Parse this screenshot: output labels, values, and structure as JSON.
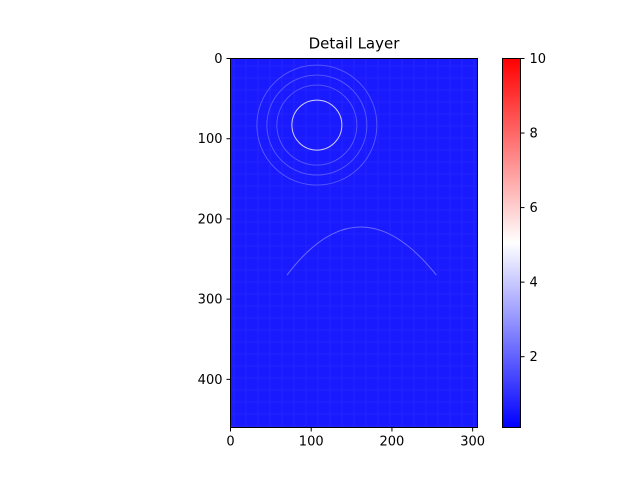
{
  "chart_data": {
    "type": "heatmap",
    "title": "Detail Layer",
    "xlabel": "",
    "ylabel": "",
    "image_size": {
      "width": 306,
      "height": 460
    },
    "x_ticks": [
      0,
      100,
      200,
      300
    ],
    "y_ticks": [
      0,
      100,
      200,
      300,
      400
    ],
    "xlim": [
      0,
      306
    ],
    "ylim": [
      460,
      0
    ],
    "colormap": "bwr",
    "colormap_colors": [
      "#0000ff",
      "#ffffff",
      "#ff0000"
    ],
    "colorbar": {
      "range": [
        0.1,
        10
      ],
      "ticks": [
        2,
        4,
        6,
        8,
        10
      ]
    },
    "grid": false,
    "content_description_hidden": true
  }
}
